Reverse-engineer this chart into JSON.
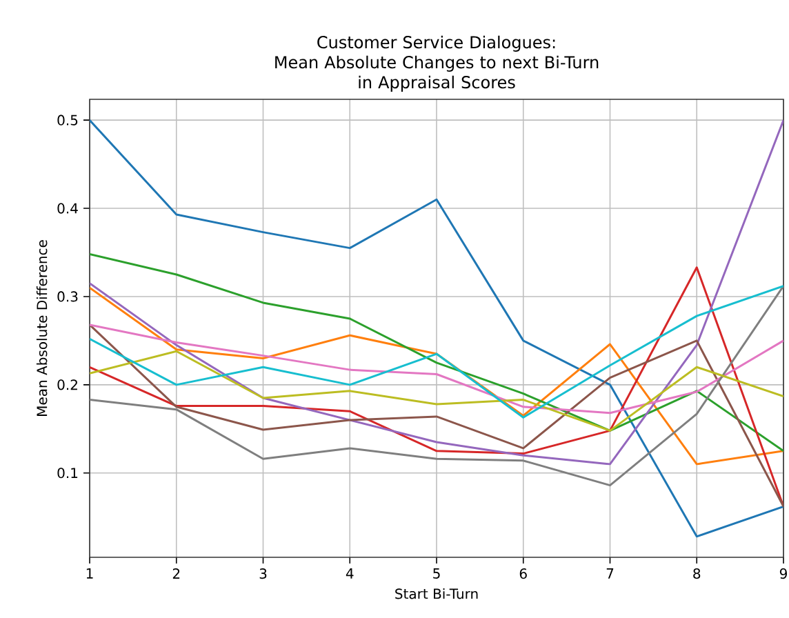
{
  "chart_data": {
    "type": "line",
    "title": "Customer Service Dialogues:\nMean Absolute Changes to next Bi-Turn\nin Appraisal Scores",
    "xlabel": "Start Bi-Turn",
    "ylabel": "Mean Absolute Difference",
    "x": [
      1,
      2,
      3,
      4,
      5,
      6,
      7,
      8,
      9
    ],
    "series": [
      {
        "color": "#1f77b4",
        "values": [
          0.5,
          0.393,
          0.373,
          0.355,
          0.41,
          0.25,
          0.2,
          0.028,
          0.062
        ]
      },
      {
        "color": "#ff7f0e",
        "values": [
          0.31,
          0.24,
          0.23,
          0.256,
          0.235,
          0.165,
          0.246,
          0.11,
          0.125
        ]
      },
      {
        "color": "#2ca02c",
        "values": [
          0.348,
          0.325,
          0.293,
          0.275,
          0.225,
          0.19,
          0.148,
          0.193,
          0.125
        ]
      },
      {
        "color": "#d62728",
        "values": [
          0.22,
          0.176,
          0.176,
          0.17,
          0.125,
          0.122,
          0.148,
          0.333,
          0.062
        ]
      },
      {
        "color": "#9467bd",
        "values": [
          0.315,
          0.245,
          0.185,
          0.16,
          0.135,
          0.12,
          0.11,
          0.245,
          0.5
        ]
      },
      {
        "color": "#8c564b",
        "values": [
          0.268,
          0.175,
          0.149,
          0.16,
          0.164,
          0.128,
          0.208,
          0.25,
          0.062
        ]
      },
      {
        "color": "#e377c2",
        "values": [
          0.268,
          0.248,
          0.233,
          0.217,
          0.212,
          0.175,
          0.168,
          0.192,
          0.25
        ]
      },
      {
        "color": "#7f7f7f",
        "values": [
          0.183,
          0.172,
          0.116,
          0.128,
          0.116,
          0.114,
          0.086,
          0.167,
          0.312
        ]
      },
      {
        "color": "#bcbd22",
        "values": [
          0.213,
          0.238,
          0.185,
          0.193,
          0.178,
          0.183,
          0.148,
          0.22,
          0.187
        ]
      },
      {
        "color": "#17becf",
        "values": [
          0.252,
          0.2,
          0.22,
          0.2,
          0.235,
          0.163,
          0.222,
          0.278,
          0.312
        ]
      }
    ],
    "xlim": [
      1,
      9
    ],
    "ylim": [
      0.0044,
      0.5236
    ],
    "xticks": [
      1,
      2,
      3,
      4,
      5,
      6,
      7,
      8,
      9
    ],
    "yticks": [
      0.1,
      0.2,
      0.3,
      0.4,
      0.5
    ],
    "grid": true,
    "marker": "none",
    "line_style": "solid"
  }
}
